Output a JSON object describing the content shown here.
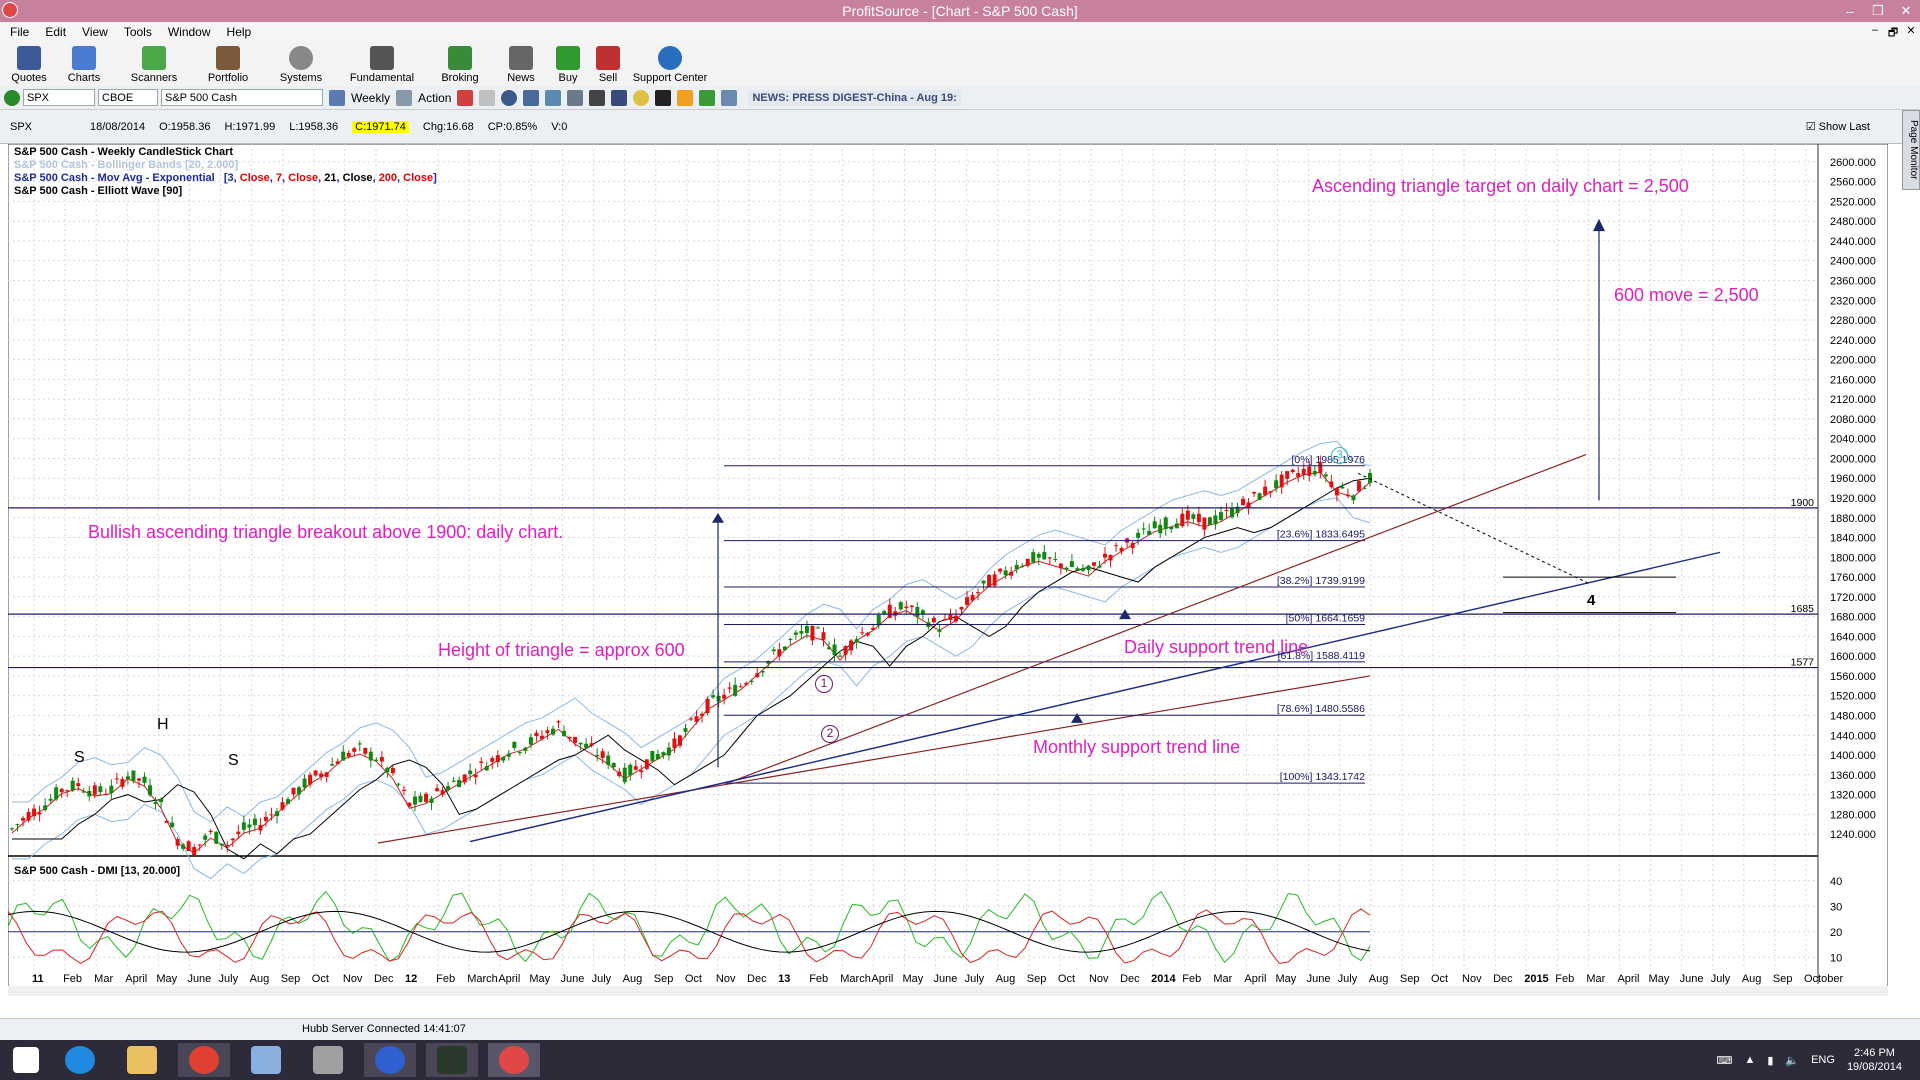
{
  "window": {
    "title": "ProfitSource - [Chart - S&P 500 Cash]",
    "minimize": "–",
    "restore": "❐",
    "close": "✕"
  },
  "menu": [
    "File",
    "Edit",
    "View",
    "Tools",
    "Window",
    "Help"
  ],
  "mdi_buttons": [
    "–",
    "🗗",
    "✕"
  ],
  "toolbar": [
    {
      "label": "Quotes",
      "icon": "quotes-icon",
      "color": "#3c5a99"
    },
    {
      "label": "Charts",
      "icon": "charts-icon",
      "color": "#4a7bd0"
    },
    {
      "label": "Scanners",
      "icon": "scanners-icon",
      "color": "#4aa84a"
    },
    {
      "label": "Portfolio",
      "icon": "portfolio-icon",
      "color": "#7a5a3a"
    },
    {
      "label": "Systems",
      "icon": "systems-icon",
      "color": "#888888"
    },
    {
      "label": "Fundamental",
      "icon": "fundamental-icon",
      "color": "#555555"
    },
    {
      "label": "Broking",
      "icon": "broking-icon",
      "color": "#3a8a3a"
    },
    {
      "label": "News",
      "icon": "news-icon",
      "color": "#666666"
    },
    {
      "label": "Buy",
      "icon": "buy-icon",
      "color": "#2f9a2f"
    },
    {
      "label": "Sell",
      "icon": "sell-icon",
      "color": "#c03030"
    },
    {
      "label": "Support Center",
      "icon": "help-icon",
      "color": "#2a6ec0"
    }
  ],
  "symbol_bar": {
    "symbol": "SPX",
    "exchange": "CBOE",
    "name": "S&P 500 Cash",
    "period": "Weekly",
    "action": "Action",
    "news": "NEWS: PRESS DIGEST-China - Aug 19:"
  },
  "info": {
    "symbol": "SPX",
    "date": "18/08/2014",
    "open": "O:1958.36",
    "high": "H:1971.99",
    "low": "L:1958.36",
    "close": "C:1971.74",
    "change": "Chg:16.68",
    "change_pct": "CP:0.85%",
    "volume": "V:0",
    "show_last": "Show Last"
  },
  "page_monitor": "Page Monitor",
  "legend": {
    "line1": "S&P 500 Cash - Weekly CandleStick Chart",
    "line2": "S&P 500 Cash - Bollinger Bands [20, 2.000]",
    "line3_prefix": "S&P 500 Cash - Mov Avg - Exponential",
    "line3_params": [
      "[3, ",
      "Close",
      ", ",
      "7",
      ", ",
      "Close",
      ", ",
      "21",
      ", ",
      "Close",
      ", ",
      "200",
      ", ",
      "Close",
      "]"
    ],
    "line4": "S&P 500 Cash - Elliott Wave [90]"
  },
  "dmi_title": "S&P 500 Cash - DMI [13, 20.000]",
  "annotations": {
    "target": "Ascending triangle target on daily chart = 2,500",
    "move": "600 move = 2,500",
    "breakout": "Bullish ascending triangle breakout above 1900: daily chart.",
    "height": "Height of triangle = approx 600",
    "daily_support": "Daily support trend line",
    "monthly_support": "Monthly support trend line"
  },
  "markers": {
    "s_left": "S",
    "h": "H",
    "s_right": "S",
    "wave1": "1",
    "wave2": "2",
    "wave3": "3",
    "wave4": "4"
  },
  "fib_labels": [
    "[0%] 1985.1976",
    "[23.6%] 1833.6495",
    "[38.2%] 1739.9199",
    "[50%] 1664.1659",
    "[61.8%] 1588.4119",
    "[78.6%] 1480.5586",
    "[100%] 1343.1742"
  ],
  "level_labels": [
    "1900",
    "1685",
    "1577"
  ],
  "price_axis": [
    "2600.000",
    "2560.000",
    "2520.000",
    "2480.000",
    "2440.000",
    "2400.000",
    "2360.000",
    "2320.000",
    "2280.000",
    "2240.000",
    "2200.000",
    "2160.000",
    "2120.000",
    "2080.000",
    "2040.000",
    "2000.000",
    "1960.000",
    "1920.000",
    "1880.000",
    "1840.000",
    "1800.000",
    "1760.000",
    "1720.000",
    "1680.000",
    "1640.000",
    "1600.000",
    "1560.000",
    "1520.000",
    "1480.000",
    "1440.000",
    "1400.000",
    "1360.000",
    "1320.000",
    "1280.000",
    "1240.000"
  ],
  "dmi_axis": [
    "40",
    "30",
    "20",
    "10"
  ],
  "date_axis": [
    "11",
    "Feb",
    "Mar",
    "April",
    "May",
    "June",
    "July",
    "Aug",
    "Sep",
    "Oct",
    "Nov",
    "Dec",
    "12",
    "Feb",
    "March",
    "April",
    "May",
    "June",
    "July",
    "Aug",
    "Sep",
    "Oct",
    "Nov",
    "Dec",
    "13",
    "Feb",
    "March",
    "April",
    "May",
    "June",
    "July",
    "Aug",
    "Sep",
    "Oct",
    "Nov",
    "Dec",
    "2014",
    "Feb",
    "Mar",
    "April",
    "May",
    "June",
    "July",
    "Aug",
    "Sep",
    "Oct",
    "Nov",
    "Dec",
    "2015",
    "Feb",
    "Mar",
    "April",
    "May",
    "June",
    "July",
    "Aug",
    "Sep",
    "October"
  ],
  "status": "Hubb Server Connected 14:41:07",
  "tray": {
    "lang": "ENG",
    "time": "2:46 PM",
    "date": "19/08/2014"
  },
  "taskbar_apps": [
    "windows-start-icon",
    "internet-explorer-icon",
    "file-explorer-icon",
    "chrome-icon",
    "notepad-icon",
    "calculator-icon",
    "paint-icon",
    "gocharting-icon",
    "profitsource-icon"
  ],
  "chart_data": {
    "type": "candlestick",
    "title": "S&P 500 Cash - Weekly CandleStick Chart",
    "ylim": [
      1220,
      2620
    ],
    "last_bar": {
      "date": "18/08/2014",
      "open": 1958.36,
      "high": 1971.99,
      "low": 1958.36,
      "close": 1971.74
    },
    "horizontal_levels": [
      1900,
      1685,
      1577
    ],
    "fibonacci": [
      {
        "level": "0%",
        "value": 1985.1976
      },
      {
        "level": "23.6%",
        "value": 1833.6495
      },
      {
        "level": "38.2%",
        "value": 1739.9199
      },
      {
        "level": "50%",
        "value": 1664.1659
      },
      {
        "level": "61.8%",
        "value": 1588.4119
      },
      {
        "level": "78.6%",
        "value": 1480.5586
      },
      {
        "level": "100%",
        "value": 1343.1742
      }
    ],
    "trend": [
      1250,
      1280,
      1300,
      1330,
      1340,
      1325,
      1330,
      1360,
      1345,
      1300,
      1230,
      1210,
      1240,
      1220,
      1250,
      1260,
      1290,
      1320,
      1350,
      1370,
      1400,
      1410,
      1395,
      1360,
      1300,
      1310,
      1330,
      1350,
      1370,
      1390,
      1410,
      1420,
      1440,
      1460,
      1430,
      1410,
      1390,
      1360,
      1380,
      1400,
      1420,
      1460,
      1500,
      1520,
      1540,
      1570,
      1600,
      1630,
      1650,
      1640,
      1600,
      1640,
      1660,
      1690,
      1700,
      1680,
      1660,
      1680,
      1720,
      1750,
      1770,
      1790,
      1800,
      1790,
      1780,
      1770,
      1800,
      1820,
      1840,
      1860,
      1870,
      1880,
      1870,
      1880,
      1900,
      1920,
      1940,
      1960,
      1975,
      1980,
      1940,
      1930,
      1960
    ],
    "dmi": {
      "scale": [
        10,
        40
      ]
    }
  }
}
